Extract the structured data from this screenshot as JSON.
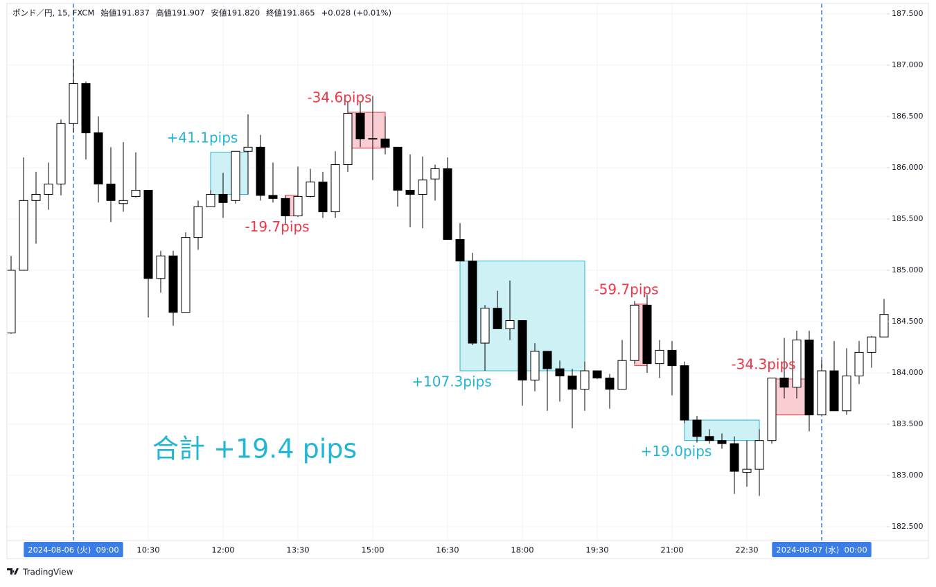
{
  "header": {
    "symbol": "ポンド／円, 15, FXCM",
    "open": "始値191.837",
    "high": "高値191.907",
    "low": "安値191.820",
    "close": "終値191.865",
    "change": "+0.028 (+0.01%)"
  },
  "logo": "TradingView",
  "chart_data": {
    "type": "candlestick",
    "categories": [
      null,
      null,
      null,
      null,
      null,
      "2024-08-06 (火)  09:00",
      null,
      null,
      null,
      null,
      null,
      "10:30",
      null,
      null,
      null,
      null,
      null,
      "12:00",
      null,
      null,
      null,
      null,
      null,
      "13:30",
      null,
      null,
      null,
      null,
      null,
      "15:00",
      null,
      null,
      null,
      null,
      null,
      "16:30",
      null,
      null,
      null,
      null,
      null,
      "18:00",
      null,
      null,
      null,
      null,
      null,
      "19:30",
      null,
      null,
      null,
      null,
      null,
      "21:00",
      null,
      null,
      null,
      null,
      null,
      "22:30",
      null,
      null,
      null,
      null,
      null,
      "2024-08-07 (水)  00:00",
      null,
      null,
      null,
      null,
      null
    ],
    "open": [
      184.39,
      185.0,
      185.68,
      185.74,
      185.84,
      186.43,
      186.82,
      186.34,
      185.84,
      185.65,
      185.72,
      185.78,
      184.92,
      185.14,
      184.59,
      185.32,
      185.62,
      185.74,
      185.68,
      186.16,
      186.2,
      185.73,
      185.7,
      185.53,
      185.72,
      185.86,
      185.57,
      186.03,
      186.53,
      186.28,
      186.28,
      186.2,
      185.78,
      185.74,
      185.89,
      185.99,
      185.3,
      185.09,
      184.29,
      184.63,
      184.43,
      184.51,
      183.93,
      184.21,
      184.04,
      183.97,
      183.84,
      184.02,
      183.95,
      183.84,
      184.12,
      184.66,
      184.09,
      184.22,
      184.07,
      183.54,
      183.38,
      183.34,
      183.31,
      183.03,
      183.06,
      183.34,
      183.95,
      183.86,
      184.32,
      183.59,
      184.02,
      183.63,
      183.97,
      184.2,
      184.35
    ],
    "high": [
      185.14,
      186.1,
      185.96,
      186.05,
      186.47,
      187.06,
      186.84,
      186.5,
      186.2,
      186.25,
      186.15,
      185.78,
      185.19,
      185.19,
      185.37,
      185.68,
      185.78,
      185.95,
      186.16,
      186.52,
      186.32,
      186.05,
      185.73,
      186.01,
      185.99,
      185.96,
      186.16,
      186.64,
      186.64,
      186.7,
      186.5,
      186.2,
      186.13,
      186.11,
      186.03,
      186.1,
      185.46,
      185.17,
      184.66,
      184.8,
      184.9,
      184.51,
      184.29,
      184.21,
      184.12,
      184.04,
      184.11,
      184.02,
      183.99,
      184.32,
      184.7,
      184.76,
      184.32,
      184.31,
      184.11,
      183.58,
      183.45,
      183.41,
      183.38,
      183.34,
      183.45,
      183.95,
      184.34,
      184.41,
      184.41,
      184.12,
      184.31,
      184.24,
      184.31,
      184.36,
      184.72
    ],
    "low": [
      184.38,
      185.0,
      185.26,
      185.59,
      185.73,
      186.34,
      186.08,
      185.66,
      185.47,
      185.57,
      185.71,
      184.54,
      184.78,
      184.46,
      184.59,
      185.2,
      185.62,
      185.51,
      185.65,
      185.74,
      185.68,
      185.66,
      185.44,
      185.52,
      185.71,
      185.51,
      185.51,
      185.96,
      186.2,
      185.88,
      186.13,
      185.62,
      185.42,
      185.41,
      185.68,
      185.3,
      185.09,
      184.27,
      184.02,
      184.43,
      184.32,
      183.68,
      183.82,
      183.63,
      183.72,
      183.46,
      183.63,
      183.94,
      183.65,
      183.84,
      184.09,
      184.0,
      183.95,
      183.78,
      183.51,
      183.32,
      183.31,
      183.26,
      182.82,
      182.89,
      182.8,
      183.31,
      183.75,
      183.75,
      183.43,
      183.59,
      183.63,
      183.59,
      183.89,
      184.05,
      184.35
    ],
    "close": [
      185.0,
      185.68,
      185.74,
      185.84,
      186.43,
      186.82,
      186.34,
      185.84,
      185.68,
      185.68,
      185.78,
      184.92,
      185.14,
      184.59,
      185.32,
      185.62,
      185.74,
      185.66,
      186.16,
      186.2,
      185.73,
      185.7,
      185.53,
      185.72,
      185.86,
      185.57,
      186.03,
      186.53,
      186.28,
      186.285,
      186.2,
      185.78,
      185.74,
      185.88,
      185.99,
      185.3,
      185.09,
      184.29,
      184.63,
      184.43,
      184.51,
      183.93,
      184.21,
      184.04,
      183.97,
      183.84,
      184.02,
      183.95,
      183.84,
      184.12,
      184.66,
      184.09,
      184.22,
      184.07,
      183.54,
      183.38,
      183.34,
      183.31,
      183.04,
      183.06,
      183.34,
      183.95,
      183.86,
      184.32,
      183.59,
      184.02,
      183.63,
      183.97,
      184.2,
      184.35,
      184.57
    ],
    "up_color": "#ffffff",
    "down_color": "#000000",
    "border_color": "#000000",
    "ylim": [
      182.365,
      187.601
    ],
    "yticks": [
      {
        "value": 182.5,
        "label": "182.500"
      },
      {
        "value": 183.0,
        "label": "183.000"
      },
      {
        "value": 183.5,
        "label": "183.500"
      },
      {
        "value": 184.0,
        "label": "184.000"
      },
      {
        "value": 184.5,
        "label": "184.500"
      },
      {
        "value": 185.0,
        "label": "185.000"
      },
      {
        "value": 185.5,
        "label": "185.500"
      },
      {
        "value": 186.0,
        "label": "186.000"
      },
      {
        "value": 186.5,
        "label": "186.500"
      },
      {
        "value": 187.0,
        "label": "187.000"
      },
      {
        "value": 187.5,
        "label": "187.500"
      }
    ],
    "grid": true,
    "session_breaks": [
      5,
      65
    ],
    "trades": [
      {
        "label": "+41.1pips",
        "start": 16,
        "end": 19,
        "entry": 185.74,
        "exit": 186.15,
        "color": "#22b5d6",
        "fill": "#c9eff4",
        "label_position": "above"
      },
      {
        "label": "-19.7pips",
        "start": 22,
        "end": 23,
        "entry": 185.73,
        "exit": 185.53,
        "color": "#f23645",
        "fill": "#f8c8cc",
        "label_position": "below"
      },
      {
        "label": "-34.6pips",
        "start": 27,
        "end": 30,
        "entry": 186.54,
        "exit": 186.19,
        "color": "#f23645",
        "fill": "#f8c8cc",
        "label_position": "above"
      },
      {
        "label": "+107.3pips",
        "start": 36,
        "end": 46,
        "entry": 184.02,
        "exit": 185.09,
        "color": "#22b5d6",
        "fill": "#c9eff4",
        "label_position": "below"
      },
      {
        "label": "-59.7pips",
        "start": 50,
        "end": 51,
        "entry": 184.67,
        "exit": 184.07,
        "color": "#f23645",
        "fill": "#f8c8cc",
        "label_position": "above"
      },
      {
        "label": "+19.0pips",
        "start": 54,
        "end": 60,
        "entry": 183.34,
        "exit": 183.54,
        "color": "#22b5d6",
        "fill": "#c9eff4",
        "label_position": "below"
      },
      {
        "label": "-34.3pips",
        "start": 61,
        "end": 64,
        "entry": 183.94,
        "exit": 183.59,
        "color": "#f23645",
        "fill": "#f8c8cc",
        "label_position": "above"
      }
    ],
    "total_label": "合計 +19.4 pips",
    "total_color": "#22b5d6"
  }
}
